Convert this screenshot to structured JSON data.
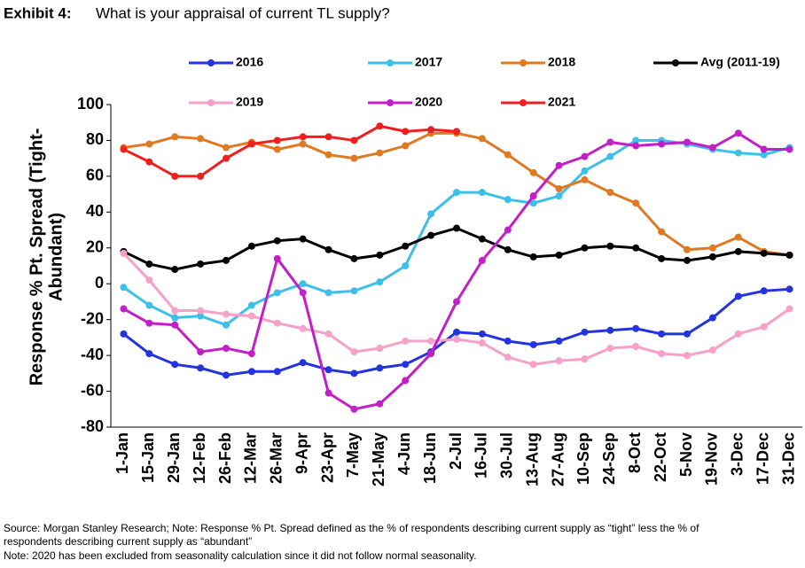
{
  "chart_data": {
    "type": "line",
    "title_label": "Exhibit 4:",
    "title": "What is your appraisal of current TL supply?",
    "ylabel": [
      "Response % Pt. Spread (Tight-",
      "Abundant)"
    ],
    "categories": [
      "1-Jan",
      "15-Jan",
      "29-Jan",
      "12-Feb",
      "26-Feb",
      "12-Mar",
      "26-Mar",
      "9-Apr",
      "23-Apr",
      "7-May",
      "21-May",
      "4-Jun",
      "18-Jun",
      "2-Jul",
      "16-Jul",
      "30-Jul",
      "13-Aug",
      "27-Aug",
      "10-Sep",
      "24-Sep",
      "8-Oct",
      "22-Oct",
      "5-Nov",
      "19-Nov",
      "3-Dec",
      "17-Dec",
      "31-Dec"
    ],
    "series": [
      {
        "name": "2016",
        "color": "#2233e0",
        "values": [
          -28,
          -39,
          -45,
          -47,
          -51,
          -49,
          -49,
          -44,
          -48,
          -50,
          -47,
          -45,
          -38,
          -27,
          -28,
          -32,
          -34,
          -32,
          -27,
          -26,
          -25,
          -28,
          -28,
          -19,
          -7,
          -4,
          -3
        ]
      },
      {
        "name": "2017",
        "color": "#3cbfe8",
        "values": [
          -2,
          -12,
          -19,
          -18,
          -23,
          -12,
          -5,
          0,
          -5,
          -4,
          1,
          10,
          39,
          51,
          51,
          47,
          45,
          49,
          63,
          71,
          80,
          80,
          78,
          75,
          73,
          72,
          76
        ]
      },
      {
        "name": "2018",
        "color": "#e07a22",
        "values": [
          76,
          78,
          82,
          81,
          76,
          79,
          75,
          78,
          72,
          70,
          73,
          77,
          84,
          84,
          81,
          72,
          62,
          53,
          58,
          51,
          45,
          29,
          19,
          20,
          26,
          18,
          16
        ]
      },
      {
        "name": "Avg (2011-19)",
        "color": "#000000",
        "values": [
          18,
          11,
          8,
          11,
          13,
          21,
          24,
          25,
          19,
          14,
          16,
          21,
          27,
          31,
          25,
          19,
          15,
          16,
          20,
          21,
          20,
          14,
          13,
          15,
          18,
          17,
          16
        ]
      },
      {
        "name": "2019",
        "color": "#f7a0c8",
        "values": [
          17,
          2,
          -15,
          -15,
          -17,
          -18,
          -22,
          -25,
          -28,
          -38,
          -36,
          -32,
          -32,
          -31,
          -33,
          -41,
          -45,
          -43,
          -42,
          -36,
          -35,
          -39,
          -40,
          -37,
          -28,
          -24,
          -14
        ]
      },
      {
        "name": "2020",
        "color": "#c21fc8",
        "values": [
          -14,
          -22,
          -23,
          -38,
          -36,
          -39,
          14,
          -5,
          -61,
          -70,
          -67,
          -54,
          -39,
          -10,
          13,
          30,
          49,
          66,
          71,
          79,
          77,
          78,
          79,
          76,
          84,
          75,
          75
        ]
      },
      {
        "name": "2021",
        "color": "#f01e1e",
        "values": [
          75,
          68,
          60,
          60,
          70,
          78,
          80,
          82,
          82,
          80,
          88,
          85,
          86,
          85,
          null,
          null,
          null,
          null,
          null,
          null,
          null,
          null,
          null,
          null,
          null,
          null,
          null
        ]
      }
    ],
    "ylim": [
      -80,
      100
    ],
    "yticks": [
      -80,
      -60,
      -40,
      -20,
      0,
      20,
      40,
      60,
      80,
      100
    ],
    "notes": [
      "Source: Morgan Stanley Research; Note: Response % Pt. Spread defined as the % of respondents describing current supply as “tight” less the % of",
      "respondents describing current supply as “abundant”",
      "Note: 2020 has been excluded from seasonality calculation since it did not follow normal seasonality."
    ]
  }
}
